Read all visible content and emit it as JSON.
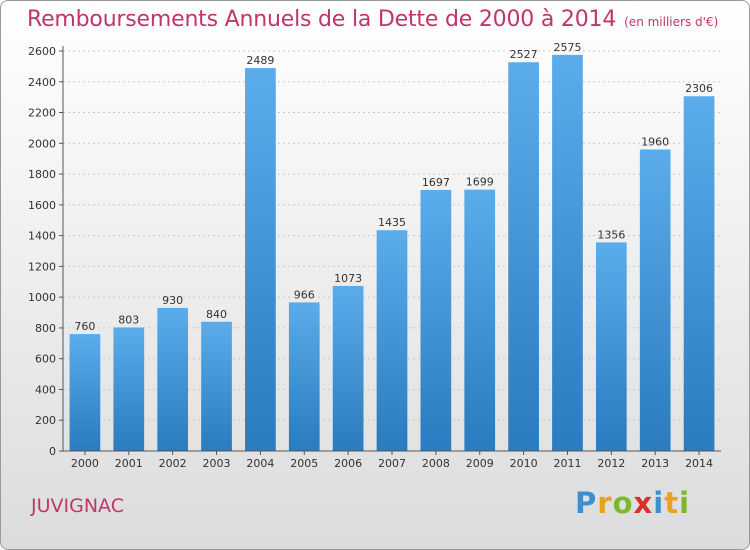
{
  "chart_data": {
    "type": "bar",
    "title": "Remboursements Annuels de la Dette de 2000 à 2014",
    "subtitle": "(en milliers d'€)",
    "categories": [
      "2000",
      "2001",
      "2002",
      "2003",
      "2004",
      "2005",
      "2006",
      "2007",
      "2008",
      "2009",
      "2010",
      "2011",
      "2012",
      "2013",
      "2014"
    ],
    "values": [
      760,
      803,
      930,
      840,
      2489,
      966,
      1073,
      1435,
      1697,
      1699,
      2527,
      2575,
      1356,
      1960,
      2306
    ],
    "value_labels": [
      "760",
      "803",
      "930",
      "840",
      "2489",
      "966",
      "1073",
      "1435",
      "1697",
      "1699",
      "2527",
      "2575",
      "1356",
      "1960",
      "2306"
    ],
    "yticks": [
      "0",
      "200",
      "400",
      "600",
      "800",
      "1000",
      "1200",
      "1400",
      "1600",
      "1800",
      "2000",
      "2200",
      "2400",
      "2600"
    ],
    "ylim": [
      0,
      2600
    ],
    "xlabel": "",
    "ylabel": "",
    "grid": true,
    "bar_color_top": "#5aacea",
    "bar_color_bottom": "#2a7bbf"
  },
  "footer": {
    "commune": "JUVIGNAC",
    "brand_letters": [
      "P",
      "r",
      "o",
      "x",
      "i",
      "t",
      "i"
    ],
    "brand_colors": [
      "#3d8fd0",
      "#e9a21f",
      "#7bb82a",
      "#d9302c",
      "#3d8fd0",
      "#e9a21f",
      "#7bb82a"
    ]
  }
}
